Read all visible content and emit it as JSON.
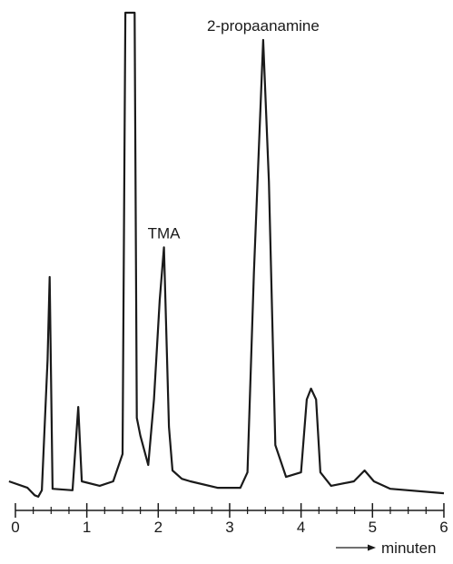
{
  "chart_data": {
    "type": "line",
    "x": [
      -0.09,
      0.17,
      0.27,
      0.32,
      0.37,
      0.45,
      0.48,
      0.52,
      0.8,
      0.88,
      0.93,
      1.18,
      1.37,
      1.5,
      1.54,
      1.67,
      1.7,
      1.75,
      1.86,
      1.94,
      2.02,
      2.08,
      2.15,
      2.2,
      2.33,
      2.45,
      2.83,
      3.15,
      3.25,
      3.34,
      3.47,
      3.55,
      3.64,
      3.79,
      4.0,
      4.08,
      4.14,
      4.21,
      4.27,
      4.42,
      4.74,
      4.89,
      5.02,
      5.25,
      6.0
    ],
    "series": [
      {
        "color": "#1a1a1a",
        "values": [
          5.5,
          4.2,
          2.7,
          2.4,
          3.7,
          30,
          46.7,
          4.0,
          3.7,
          20.5,
          5.5,
          4.6,
          5.5,
          11,
          100,
          100,
          18.3,
          14.7,
          8.8,
          22,
          42,
          52.7,
          16.5,
          7.7,
          6.0,
          5.5,
          4.2,
          4.2,
          7.3,
          47.6,
          94.5,
          66,
          12.8,
          6.4,
          7.3,
          22,
          24.2,
          22,
          7.3,
          4.6,
          5.5,
          7.7,
          5.5,
          4.0,
          3.1
        ]
      }
    ],
    "xlim": [
      -0.1,
      6.05
    ],
    "ylim": [
      0,
      100
    ],
    "xticks": [
      0,
      1,
      2,
      3,
      4,
      5,
      6
    ],
    "xminorticks": [
      0.25,
      0.5,
      0.75,
      1.25,
      1.5,
      1.75,
      2.25,
      2.5,
      2.75,
      3.25,
      3.5,
      3.75,
      4.25,
      4.5,
      4.75,
      5.25,
      5.5,
      5.75
    ],
    "xlabel": "minuten",
    "annotations": [
      {
        "text": "TMA",
        "x": 2.08,
        "y": 52.7
      },
      {
        "text": "2-propaanamine",
        "x": 3.47,
        "y": 94.5
      }
    ]
  }
}
